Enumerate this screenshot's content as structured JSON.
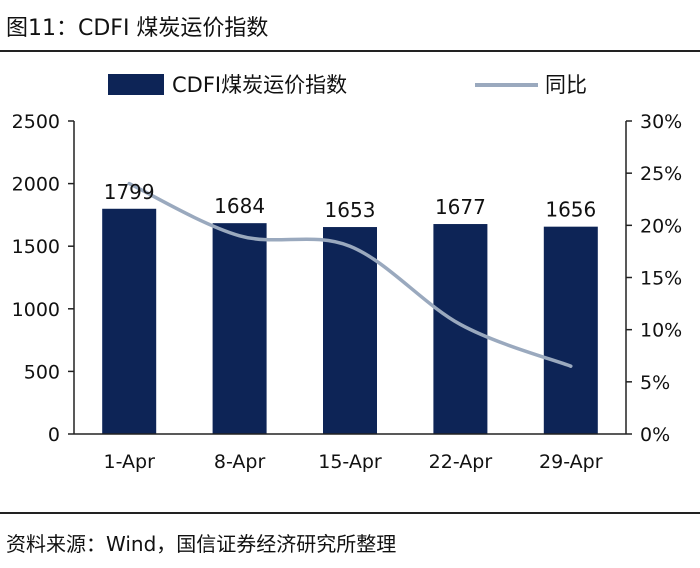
{
  "figure": {
    "title": "图11：CDFI 煤炭运价指数",
    "source": "资料来源：Wind，国信证券经济研究所整理"
  },
  "colors": {
    "bar": "#0d2456",
    "line": "#9aa9be",
    "axis": "#222222"
  },
  "chart_data": {
    "type": "bar",
    "categories": [
      "1-Apr",
      "8-Apr",
      "15-Apr",
      "22-Apr",
      "29-Apr"
    ],
    "series": [
      {
        "name": "CDFI煤炭运价指数",
        "type": "bar",
        "axis": "left",
        "values": [
          1799,
          1684,
          1653,
          1677,
          1656
        ]
      },
      {
        "name": "同比",
        "type": "line",
        "axis": "right",
        "values": [
          24.0,
          19.0,
          18.0,
          10.5,
          6.5
        ]
      }
    ],
    "data_labels": [
      "1799",
      "1684",
      "1653",
      "1677",
      "1656"
    ],
    "y_left": {
      "min": 0,
      "max": 2500,
      "ticks": [
        "0",
        "500",
        "1000",
        "1500",
        "2000",
        "2500"
      ]
    },
    "y_right": {
      "min": 0,
      "max": 30,
      "ticks": [
        "0%",
        "5%",
        "10%",
        "15%",
        "20%",
        "25%",
        "30%"
      ]
    },
    "legend": {
      "position": "top",
      "entries": [
        "CDFI煤炭运价指数",
        "同比"
      ]
    },
    "grid": false
  }
}
